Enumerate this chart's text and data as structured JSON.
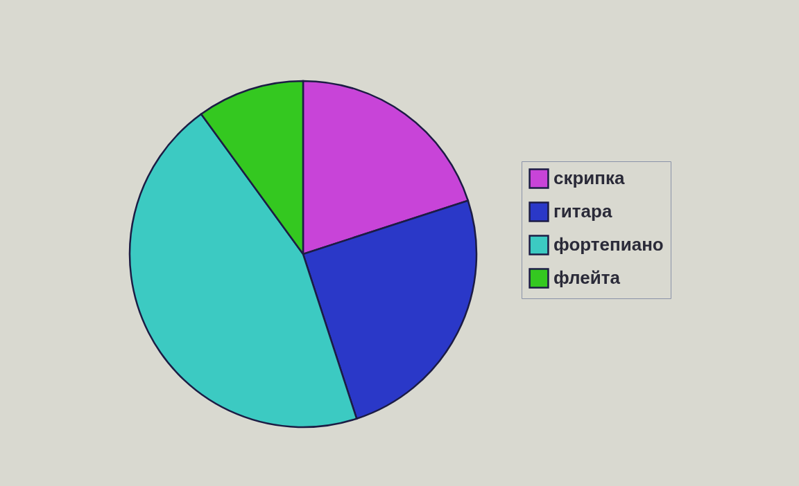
{
  "chart_data": {
    "type": "pie",
    "categories": [
      "скрипка",
      "гитара",
      "фортепиано",
      "флейта"
    ],
    "values": [
      20,
      25,
      45,
      10
    ],
    "colors": [
      "#c844d8",
      "#2a38c8",
      "#3ccac2",
      "#34c820"
    ],
    "legend": "right"
  }
}
